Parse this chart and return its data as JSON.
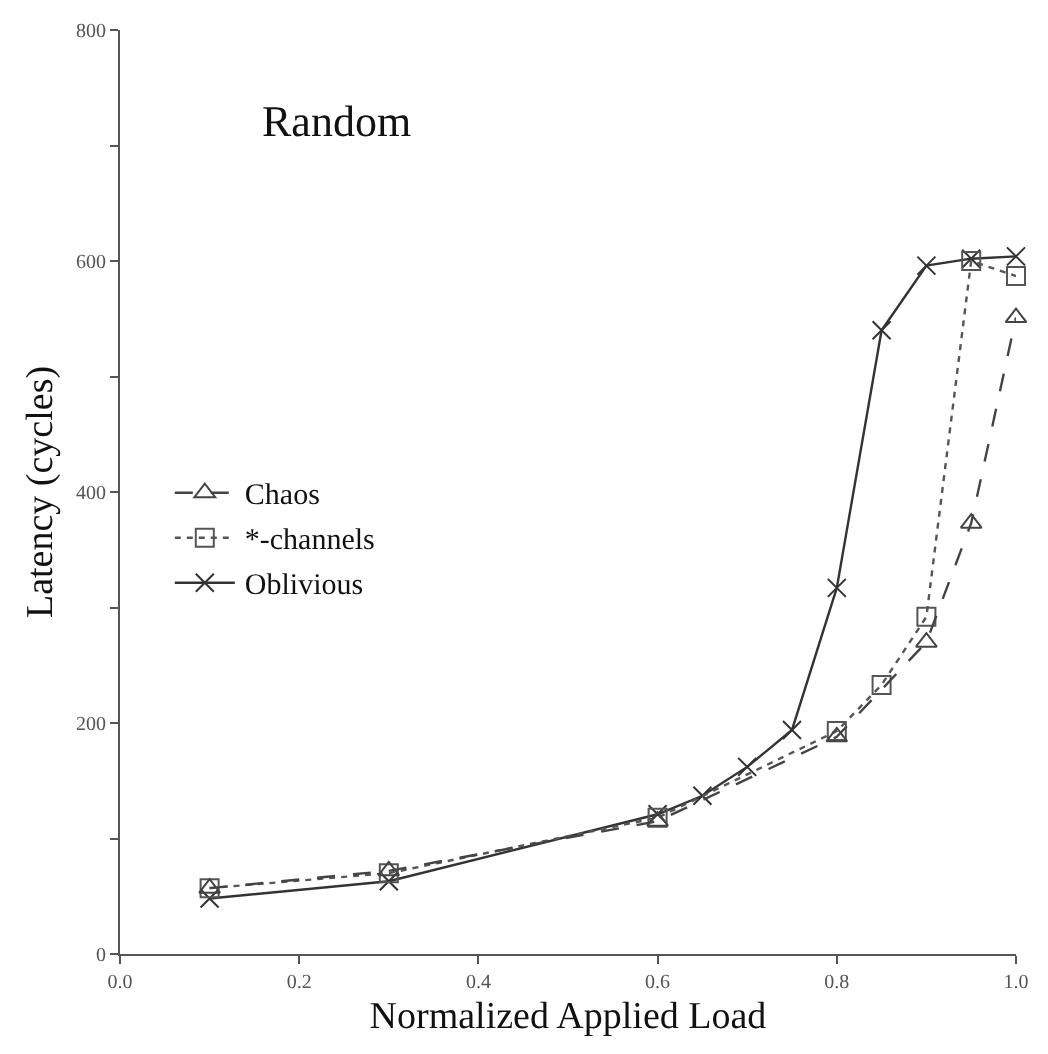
{
  "chart_data": {
    "type": "line",
    "title": "Random",
    "xlabel": "Normalized Applied Load",
    "ylabel": "Latency (cycles)",
    "xlim": [
      0,
      1
    ],
    "xticks": [
      {
        "value": 0,
        "label": "0.0"
      },
      0.2,
      0.4,
      0.6,
      0.8,
      {
        "value": 1,
        "label": "1.0"
      }
    ],
    "ylim": [
      0,
      800
    ],
    "yticks": [
      0,
      {
        "value": 100,
        "label": null
      },
      200,
      {
        "value": 300,
        "label": null
      },
      400,
      {
        "value": 500,
        "label": null
      },
      600,
      {
        "value": 700,
        "label": null
      },
      800
    ],
    "legend": "left",
    "series": [
      {
        "name": "Chaos",
        "color": "#444444",
        "marker": "triangle",
        "line_style": "dashed",
        "x": [
          0.1,
          0.3,
          0.6,
          0.8,
          0.9,
          0.95,
          1.0
        ],
        "values": [
          57,
          72,
          115,
          188,
          270,
          373,
          551
        ]
      },
      {
        "name": "*-channels",
        "color": "#555555",
        "marker": "square",
        "line_style": "dotted",
        "x": [
          0.1,
          0.3,
          0.6,
          0.8,
          0.85,
          0.9,
          0.95,
          1.0
        ],
        "values": [
          57,
          70,
          118,
          193,
          233,
          292,
          600,
          587
        ]
      },
      {
        "name": "Oblivious",
        "color": "#333333",
        "marker": "cross",
        "line_style": "solid",
        "x": [
          0.1,
          0.3,
          0.6,
          0.65,
          0.7,
          0.75,
          0.8,
          0.85,
          0.9,
          0.95,
          1.0
        ],
        "values": [
          48,
          63,
          121,
          137,
          162,
          194,
          317,
          540,
          596,
          602,
          604
        ]
      }
    ]
  }
}
